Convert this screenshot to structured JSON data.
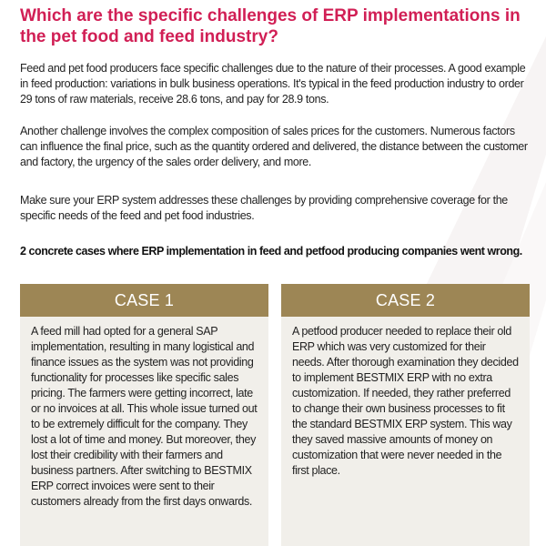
{
  "heading": "Which are the specific challenges of ERP implementations in the pet food and feed industry?",
  "paragraphs": [
    "Feed and pet food producers face specific challenges due to the nature of their processes. A good example in feed production: variations in bulk business operations. It's typical in the feed production industry to order 29 tons of raw materials, receive 28.6 tons, and pay for 28.9 tons.",
    "Another challenge involves the complex composition of sales prices for the customers. Numerous factors can influence the final price, such as the quantity ordered and delivered, the distance between the customer and factory, the urgency of the sales order delivery, and more.",
    "Make sure your ERP system addresses these challenges by providing comprehensive coverage for the specific needs of the feed and pet food industries."
  ],
  "lead": "2 concrete cases where ERP implementation in feed and petfood producing companies went wrong.",
  "cases": [
    {
      "title": "CASE 1",
      "text": "A feed mill had opted for a general SAP implementation, resulting in many logistical and finance issues as the system was not providing functionality for processes like specific sales pricing. The farmers were getting incorrect, late or no invoices at all. This whole issue turned out to be extremely difficult for the company. They lost a lot of time and money. But moreover, they lost their credibility with their farmers and business partners. After switching to BESTMIX ERP correct invoices were sent to their customers already from the first days onwards."
    },
    {
      "title": "CASE 2",
      "text": "A petfood producer needed to replace their old ERP which was very customized for their needs. After thorough examination they decided to implement BESTMIX ERP with no extra customization. If needed, they rather preferred to change their own business processes to fit the standard BESTMIX ERP system. This way they saved massive amounts of money on customization that were never needed in the first place."
    }
  ],
  "colors": {
    "heading": "#d11f55",
    "case_header": "#9d8655",
    "case_body": "#f1efea"
  }
}
